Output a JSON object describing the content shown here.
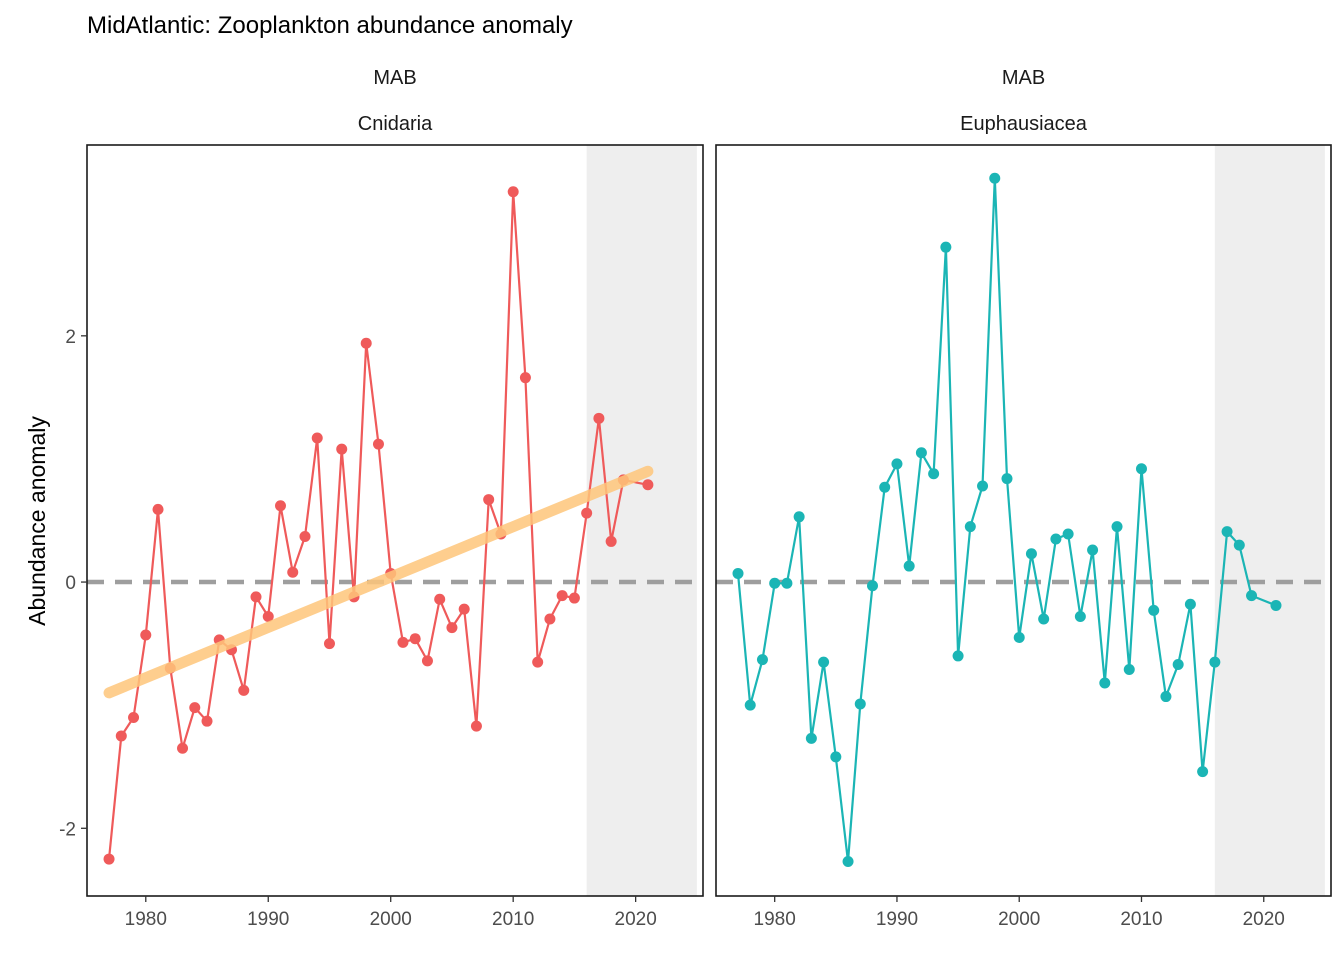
{
  "chart_data": {
    "type": "line",
    "title": "MidAtlantic: Zooplankton abundance anomaly",
    "ylabel": "Abundance anomaly",
    "xlabel": "",
    "xlim": [
      1975.2,
      2025.5
    ],
    "ylim": [
      -2.55,
      3.55
    ],
    "x_ticks": [
      1980,
      1990,
      2000,
      2010,
      2020
    ],
    "y_ticks": [
      -2,
      0,
      2
    ],
    "reference_line": {
      "y": 0,
      "style": "dashed",
      "color": "#9e9e9e"
    },
    "shaded_period": {
      "from": 2016,
      "to": 2025
    },
    "grid": false,
    "panels": [
      {
        "region": "MAB",
        "group": "Cnidaria",
        "color": "#ef5a5a",
        "trend": {
          "color": "#fec67a",
          "x": [
            1977,
            2021
          ],
          "y": [
            -0.9,
            0.9
          ]
        },
        "points": [
          {
            "x": 1977,
            "y": -2.25
          },
          {
            "x": 1978,
            "y": -1.25
          },
          {
            "x": 1979,
            "y": -1.1
          },
          {
            "x": 1980,
            "y": -0.43
          },
          {
            "x": 1981,
            "y": 0.59
          },
          {
            "x": 1982,
            "y": -0.7
          },
          {
            "x": 1983,
            "y": -1.35
          },
          {
            "x": 1984,
            "y": -1.02
          },
          {
            "x": 1985,
            "y": -1.13
          },
          {
            "x": 1986,
            "y": -0.47
          },
          {
            "x": 1987,
            "y": -0.55
          },
          {
            "x": 1988,
            "y": -0.88
          },
          {
            "x": 1989,
            "y": -0.12
          },
          {
            "x": 1990,
            "y": -0.28
          },
          {
            "x": 1991,
            "y": 0.62
          },
          {
            "x": 1992,
            "y": 0.08
          },
          {
            "x": 1993,
            "y": 0.37
          },
          {
            "x": 1994,
            "y": 1.17
          },
          {
            "x": 1995,
            "y": -0.5
          },
          {
            "x": 1996,
            "y": 1.08
          },
          {
            "x": 1997,
            "y": -0.12
          },
          {
            "x": 1998,
            "y": 1.94
          },
          {
            "x": 1999,
            "y": 1.12
          },
          {
            "x": 2000,
            "y": 0.07
          },
          {
            "x": 2001,
            "y": -0.49
          },
          {
            "x": 2002,
            "y": -0.46
          },
          {
            "x": 2003,
            "y": -0.64
          },
          {
            "x": 2004,
            "y": -0.14
          },
          {
            "x": 2005,
            "y": -0.37
          },
          {
            "x": 2006,
            "y": -0.22
          },
          {
            "x": 2007,
            "y": -1.17
          },
          {
            "x": 2008,
            "y": 0.67
          },
          {
            "x": 2009,
            "y": 0.39
          },
          {
            "x": 2010,
            "y": 3.17
          },
          {
            "x": 2011,
            "y": 1.66
          },
          {
            "x": 2012,
            "y": -0.65
          },
          {
            "x": 2013,
            "y": -0.3
          },
          {
            "x": 2014,
            "y": -0.11
          },
          {
            "x": 2015,
            "y": -0.13
          },
          {
            "x": 2016,
            "y": 0.56
          },
          {
            "x": 2017,
            "y": 1.33
          },
          {
            "x": 2018,
            "y": 0.33
          },
          {
            "x": 2019,
            "y": 0.83
          },
          {
            "x": 2021,
            "y": 0.79
          }
        ]
      },
      {
        "region": "MAB",
        "group": "Euphausiacea",
        "color": "#1bb5b5",
        "trend": null,
        "points": [
          {
            "x": 1977,
            "y": 0.07
          },
          {
            "x": 1978,
            "y": -1.0
          },
          {
            "x": 1979,
            "y": -0.63
          },
          {
            "x": 1980,
            "y": -0.01
          },
          {
            "x": 1981,
            "y": -0.01
          },
          {
            "x": 1982,
            "y": 0.53
          },
          {
            "x": 1983,
            "y": -1.27
          },
          {
            "x": 1984,
            "y": -0.65
          },
          {
            "x": 1985,
            "y": -1.42
          },
          {
            "x": 1986,
            "y": -2.27
          },
          {
            "x": 1987,
            "y": -0.99
          },
          {
            "x": 1988,
            "y": -0.03
          },
          {
            "x": 1989,
            "y": 0.77
          },
          {
            "x": 1990,
            "y": 0.96
          },
          {
            "x": 1991,
            "y": 0.13
          },
          {
            "x": 1992,
            "y": 1.05
          },
          {
            "x": 1993,
            "y": 0.88
          },
          {
            "x": 1994,
            "y": 2.72
          },
          {
            "x": 1995,
            "y": -0.6
          },
          {
            "x": 1996,
            "y": 0.45
          },
          {
            "x": 1997,
            "y": 0.78
          },
          {
            "x": 1998,
            "y": 3.28
          },
          {
            "x": 1999,
            "y": 0.84
          },
          {
            "x": 2000,
            "y": -0.45
          },
          {
            "x": 2001,
            "y": 0.23
          },
          {
            "x": 2002,
            "y": -0.3
          },
          {
            "x": 2003,
            "y": 0.35
          },
          {
            "x": 2004,
            "y": 0.39
          },
          {
            "x": 2005,
            "y": -0.28
          },
          {
            "x": 2006,
            "y": 0.26
          },
          {
            "x": 2007,
            "y": -0.82
          },
          {
            "x": 2008,
            "y": 0.45
          },
          {
            "x": 2009,
            "y": -0.71
          },
          {
            "x": 2010,
            "y": 0.92
          },
          {
            "x": 2011,
            "y": -0.23
          },
          {
            "x": 2012,
            "y": -0.93
          },
          {
            "x": 2013,
            "y": -0.67
          },
          {
            "x": 2014,
            "y": -0.18
          },
          {
            "x": 2015,
            "y": -1.54
          },
          {
            "x": 2016,
            "y": -0.65
          },
          {
            "x": 2017,
            "y": 0.41
          },
          {
            "x": 2018,
            "y": 0.3
          },
          {
            "x": 2019,
            "y": -0.11
          },
          {
            "x": 2021,
            "y": -0.19
          }
        ]
      }
    ]
  }
}
